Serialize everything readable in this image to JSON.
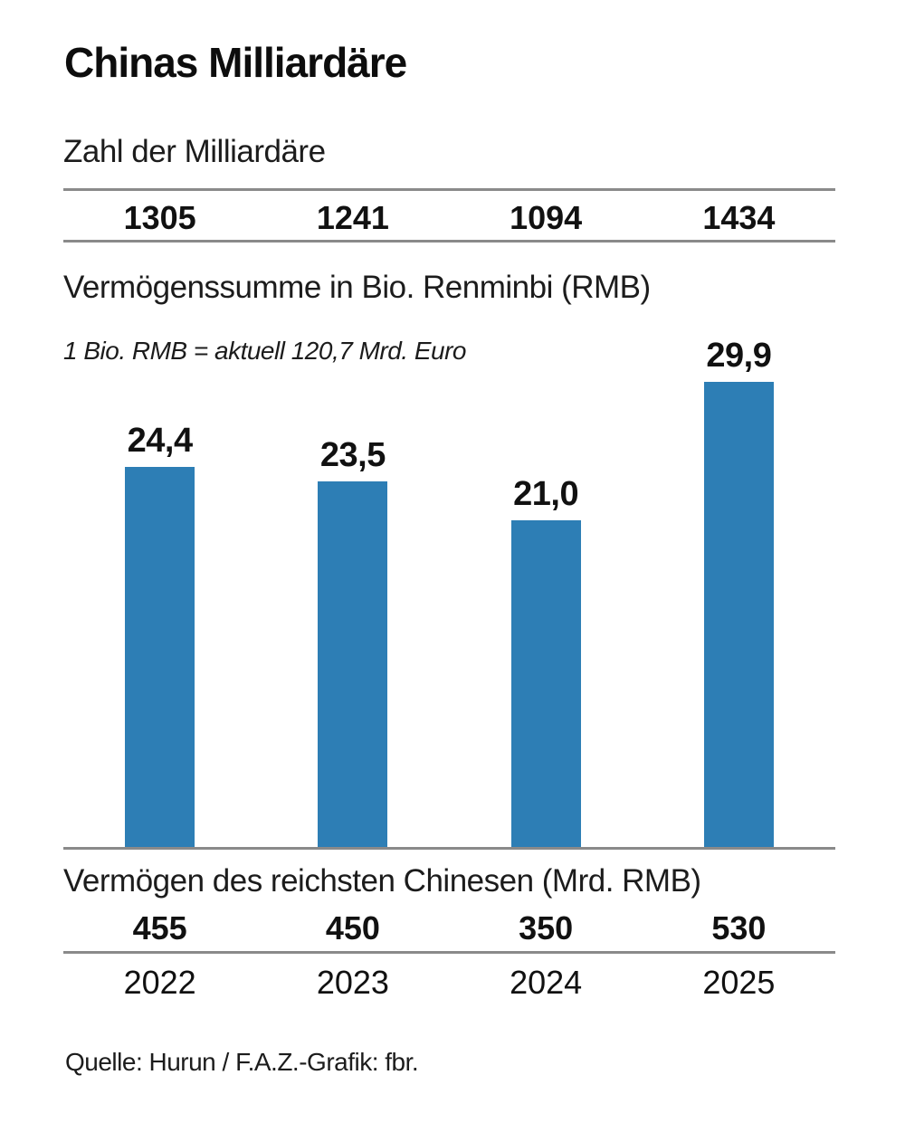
{
  "title": "Chinas Milliardäre",
  "colors": {
    "bar_blue": "#2d7eb5",
    "rule_gray": "#8a8a8a",
    "text": "#111111"
  },
  "sections": {
    "billionaire_count": {
      "heading": "Zahl der Milliardäre",
      "values": [
        "1305",
        "1241",
        "1094",
        "1434"
      ]
    },
    "wealth_sum": {
      "heading": "Vermögenssumme in Bio. Renminbi (RMB)",
      "note": "1 Bio. RMB = aktuell 120,7 Mrd. Euro",
      "bar_labels": [
        "24,4",
        "23,5",
        "21,0",
        "29,9"
      ]
    },
    "richest_chinese": {
      "heading": "Vermögen des reichsten Chinesen (Mrd. RMB)",
      "values": [
        "455",
        "450",
        "350",
        "530"
      ]
    },
    "years": [
      "2022",
      "2023",
      "2024",
      "2025"
    ],
    "source": "Quelle: Hurun / F.A.Z.-Grafik: fbr."
  },
  "chart_data": {
    "type": "bar",
    "title": "Chinas Milliardäre",
    "categories": [
      "2022",
      "2023",
      "2024",
      "2025"
    ],
    "series": [
      {
        "name": "Zahl der Milliardäre",
        "values": [
          1305,
          1241,
          1094,
          1434
        ]
      },
      {
        "name": "Vermögenssumme in Bio. Renminbi (RMB)",
        "values": [
          24.4,
          23.5,
          21.0,
          29.9
        ]
      },
      {
        "name": "Vermögen des reichsten Chinesen (Mrd. RMB)",
        "values": [
          455,
          450,
          350,
          530
        ]
      }
    ],
    "plotted_series": "Vermögenssumme in Bio. Renminbi (RMB)",
    "annotation": "1 Bio. RMB = aktuell 120,7 Mrd. Euro",
    "ylim": [
      0,
      30
    ],
    "grid": false,
    "legend": false,
    "bar_color": "#2d7eb5",
    "source": "Quelle: Hurun / F.A.Z.-Grafik: fbr."
  }
}
